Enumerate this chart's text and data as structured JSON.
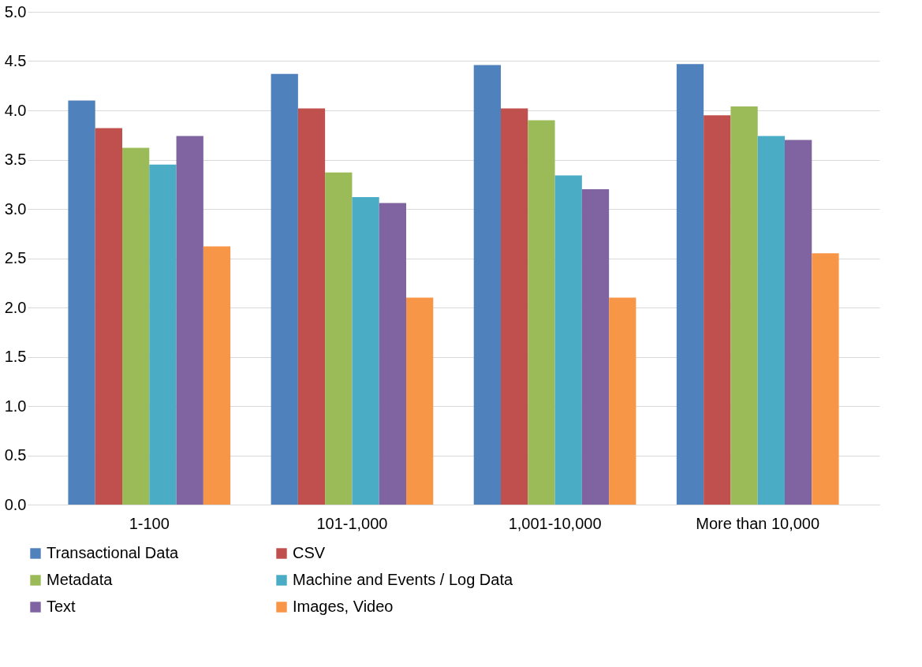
{
  "chart_data": {
    "type": "bar",
    "categories": [
      "1-100",
      "101-1,000",
      "1,001-10,000",
      "More than 10,000"
    ],
    "series": [
      {
        "name": "Transactional Data",
        "color": "#4f81bd",
        "values": [
          4.1,
          4.37,
          4.46,
          4.47
        ]
      },
      {
        "name": "CSV",
        "color": "#c0504d",
        "values": [
          3.82,
          4.02,
          4.02,
          3.95
        ]
      },
      {
        "name": "Metadata",
        "color": "#9bbb59",
        "values": [
          3.62,
          3.37,
          3.9,
          4.04
        ]
      },
      {
        "name": "Machine and Events / Log Data",
        "color": "#4bacc6",
        "values": [
          3.45,
          3.12,
          3.34,
          3.74
        ]
      },
      {
        "name": "Text",
        "color": "#8064a2",
        "values": [
          3.74,
          3.06,
          3.2,
          3.7
        ]
      },
      {
        "name": "Images, Video",
        "color": "#f79646",
        "values": [
          2.62,
          2.1,
          2.1,
          2.55
        ]
      }
    ],
    "ylim": [
      0,
      5
    ],
    "yticks": [
      {
        "value": 0,
        "label": "0.0"
      },
      {
        "value": 0.5,
        "label": "0.5"
      },
      {
        "value": 1,
        "label": "1.0"
      },
      {
        "value": 1.5,
        "label": "1.5"
      },
      {
        "value": 2,
        "label": "2.0"
      },
      {
        "value": 2.5,
        "label": "2.5"
      },
      {
        "value": 3,
        "label": "3.0"
      },
      {
        "value": 3.5,
        "label": "3.5"
      },
      {
        "value": 4,
        "label": "4.0"
      },
      {
        "value": 4.5,
        "label": "4.5"
      },
      {
        "value": 5,
        "label": "5.0"
      }
    ],
    "grid": "y",
    "legend": "bottom"
  }
}
